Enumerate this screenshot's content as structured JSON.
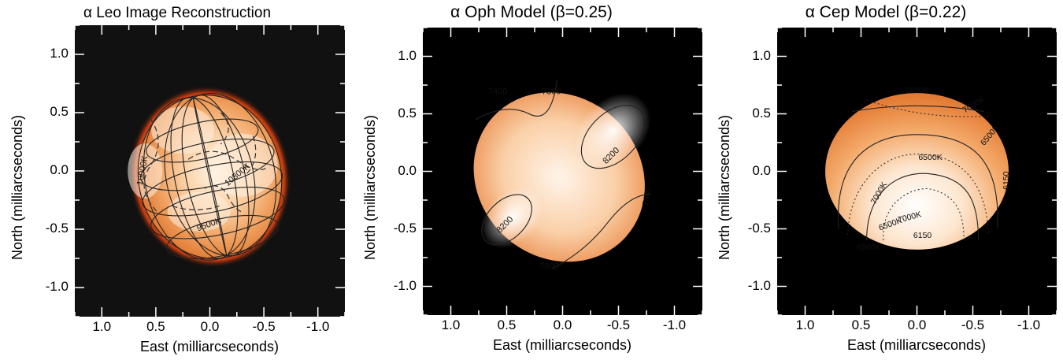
{
  "chart_data": [
    {
      "type": "heatmap",
      "title": "α Leo Image Reconstruction",
      "xlabel": "East (milliarcseconds)",
      "ylabel": "North (milliarcseconds)",
      "xlim": [
        1.25,
        -1.25
      ],
      "ylim": [
        -1.25,
        1.25
      ],
      "x_ticks": [
        1.0,
        0.5,
        0.0,
        -0.5,
        -1.0
      ],
      "y_ticks": [
        1.0,
        0.5,
        0.0,
        -0.5,
        -1.0
      ],
      "x_tick_labels": [
        "1.0",
        "0.5",
        "0.0",
        "-0.5",
        "-1.0"
      ],
      "y_tick_labels": [
        "1.0",
        "0.5",
        "0.0",
        "-0.5",
        "-1.0"
      ],
      "background": "#111111",
      "contour_labels": [
        {
          "text": "10000K",
          "x": 0.6,
          "y": 0.0,
          "angle": -80
        },
        {
          "text": "10800K",
          "x": -0.27,
          "y": -0.05,
          "angle": -40
        },
        {
          "text": "9500K",
          "x": 0.0,
          "y": -0.48,
          "angle": -20
        }
      ]
    },
    {
      "type": "heatmap",
      "title": "α Oph Model (β=0.25)",
      "xlabel": "East (milliarcseconds)",
      "ylabel": "North (milliarcseconds)",
      "xlim": [
        1.25,
        -1.25
      ],
      "ylim": [
        -1.25,
        1.25
      ],
      "x_ticks": [
        1.0,
        0.5,
        0.0,
        -0.5,
        -1.0
      ],
      "y_ticks": [
        1.0,
        0.5,
        0.0,
        -0.5,
        -1.0
      ],
      "x_tick_labels": [
        "1.0",
        "0.5",
        "0.0",
        "-0.5",
        "-1.0"
      ],
      "y_tick_labels": [
        "1.0",
        "0.5",
        "0.0",
        "-0.5",
        "-1.0"
      ],
      "background": "#000000",
      "contour_labels": [
        {
          "text": "7400",
          "x": 0.58,
          "y": 0.67,
          "angle": 0
        },
        {
          "text": "7800",
          "x": 0.1,
          "y": 0.67,
          "angle": 0
        },
        {
          "text": "8200",
          "x": -0.45,
          "y": 0.12,
          "angle": -45
        },
        {
          "text": "8200",
          "x": 0.5,
          "y": -0.48,
          "angle": -45
        },
        {
          "text": "7800",
          "x": 0.12,
          "y": -0.85,
          "angle": 0
        },
        {
          "text": "7400",
          "x": -0.78,
          "y": -0.22,
          "angle": -80
        }
      ]
    },
    {
      "type": "heatmap",
      "title": "α Cep Model (β=0.22)",
      "xlabel": "East (milliarcseconds)",
      "ylabel": "North (milliarcseconds)",
      "xlim": [
        1.25,
        -1.25
      ],
      "ylim": [
        -1.25,
        1.25
      ],
      "x_ticks": [
        1.0,
        0.5,
        0.0,
        -0.5,
        -1.0
      ],
      "y_ticks": [
        1.0,
        0.5,
        0.0,
        -0.5,
        -1.0
      ],
      "x_tick_labels": [
        "1.0",
        "0.5",
        "0.0",
        "-0.5",
        "-1.0"
      ],
      "y_tick_labels": [
        "1.0",
        "0.5",
        "0.0",
        "-0.5",
        "-1.0"
      ],
      "background": "#000000",
      "contour_labels": [
        {
          "text": "6500K",
          "x": 0.0,
          "y": 0.68,
          "angle": 0
        },
        {
          "text": "7000K",
          "x": -0.52,
          "y": 0.56,
          "angle": -30
        },
        {
          "text": "6500K",
          "x": -0.67,
          "y": 0.3,
          "angle": -50
        },
        {
          "text": "6500K",
          "x": -0.12,
          "y": 0.1,
          "angle": 0
        },
        {
          "text": "7000K",
          "x": 0.32,
          "y": -0.2,
          "angle": -60
        },
        {
          "text": "6150",
          "x": -0.82,
          "y": -0.08,
          "angle": -90
        },
        {
          "text": "7000K",
          "x": 0.06,
          "y": -0.42,
          "angle": -15
        },
        {
          "text": "6500K",
          "x": 0.23,
          "y": -0.48,
          "angle": -20
        },
        {
          "text": "6150",
          "x": -0.05,
          "y": -0.58,
          "angle": 0
        },
        {
          "text": "6500K",
          "x": 0.43,
          "y": -0.68,
          "angle": 0
        }
      ]
    }
  ]
}
